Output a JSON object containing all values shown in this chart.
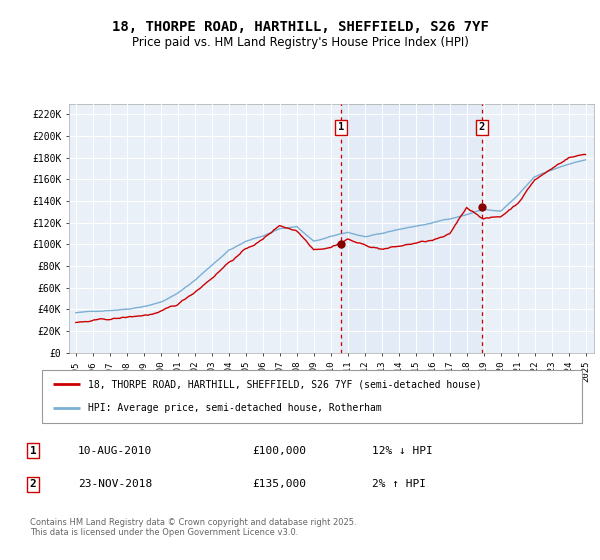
{
  "title": "18, THORPE ROAD, HARTHILL, SHEFFIELD, S26 7YF",
  "subtitle": "Price paid vs. HM Land Registry's House Price Index (HPI)",
  "legend_line1": "18, THORPE ROAD, HARTHILL, SHEFFIELD, S26 7YF (semi-detached house)",
  "legend_line2": "HPI: Average price, semi-detached house, Rotherham",
  "sale1_label": "1",
  "sale1_date": "10-AUG-2010",
  "sale1_price": "£100,000",
  "sale1_hpi": "12% ↓ HPI",
  "sale2_label": "2",
  "sale2_date": "23-NOV-2018",
  "sale2_price": "£135,000",
  "sale2_hpi": "2% ↑ HPI",
  "footer": "Contains HM Land Registry data © Crown copyright and database right 2025.\nThis data is licensed under the Open Government Licence v3.0.",
  "red_color": "#cc0000",
  "blue_color": "#7bafd4",
  "shade_color": "#dde8f5",
  "grid_color": "#ffffff",
  "plot_bg_color": "#eaf0f8",
  "ylim": [
    0,
    230000
  ],
  "yticks": [
    0,
    20000,
    40000,
    60000,
    80000,
    100000,
    120000,
    140000,
    160000,
    180000,
    200000,
    220000
  ],
  "ytick_labels": [
    "£0",
    "£20K",
    "£40K",
    "£60K",
    "£80K",
    "£100K",
    "£120K",
    "£140K",
    "£160K",
    "£180K",
    "£200K",
    "£220K"
  ],
  "sale1_x": 2010.6,
  "sale1_y": 100000,
  "sale2_x": 2018.9,
  "sale2_y": 135000,
  "xlim_min": 1995.0,
  "xlim_max": 2025.5,
  "xtick_years": [
    1995,
    1996,
    1997,
    1998,
    1999,
    2000,
    2001,
    2002,
    2003,
    2004,
    2005,
    2006,
    2007,
    2008,
    2009,
    2010,
    2011,
    2012,
    2013,
    2014,
    2015,
    2016,
    2017,
    2018,
    2019,
    2020,
    2021,
    2022,
    2023,
    2024,
    2025
  ]
}
